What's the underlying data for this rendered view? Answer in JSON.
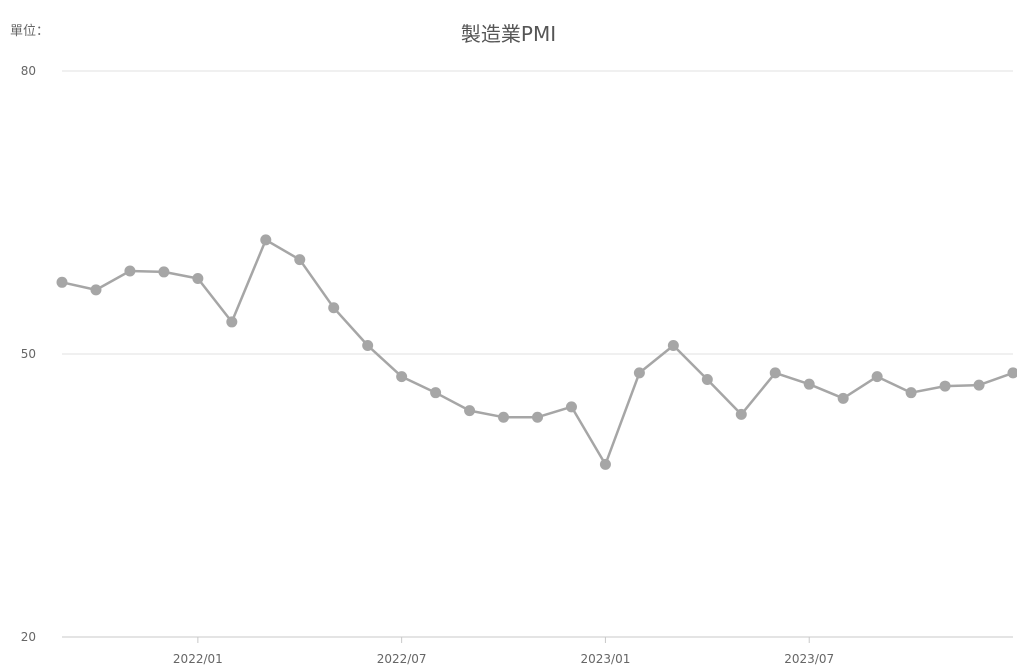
{
  "unit_label": "單位：",
  "chart_data": {
    "type": "line",
    "title": "製造業PMI",
    "xlabel": "",
    "ylabel": "",
    "ylim": [
      20,
      80
    ],
    "yticks": [
      20,
      50,
      80
    ],
    "grid": true,
    "x": [
      "2021/09",
      "2021/10",
      "2021/11",
      "2021/12",
      "2022/01",
      "2022/02",
      "2022/03",
      "2022/04",
      "2022/05",
      "2022/06",
      "2022/07",
      "2022/08",
      "2022/09",
      "2022/10",
      "2022/11",
      "2022/12",
      "2023/01",
      "2023/02",
      "2023/03",
      "2023/04",
      "2023/05",
      "2023/06",
      "2023/07",
      "2023/08",
      "2023/09",
      "2023/10",
      "2023/11",
      "2023/12",
      "2024/01"
    ],
    "x_tick_labels": [
      "2022/01",
      "2022/07",
      "2023/01",
      "2023/07"
    ],
    "series": [
      {
        "name": "",
        "color": "#a6a6a6",
        "values": [
          57.6,
          56.8,
          58.8,
          58.7,
          58.0,
          53.4,
          62.1,
          60.0,
          54.9,
          50.9,
          47.6,
          45.9,
          44.0,
          43.3,
          43.3,
          44.4,
          38.3,
          48.0,
          50.9,
          47.3,
          43.6,
          48.0,
          46.8,
          45.3,
          47.6,
          45.9,
          46.6,
          46.7,
          48.0
        ]
      }
    ]
  }
}
